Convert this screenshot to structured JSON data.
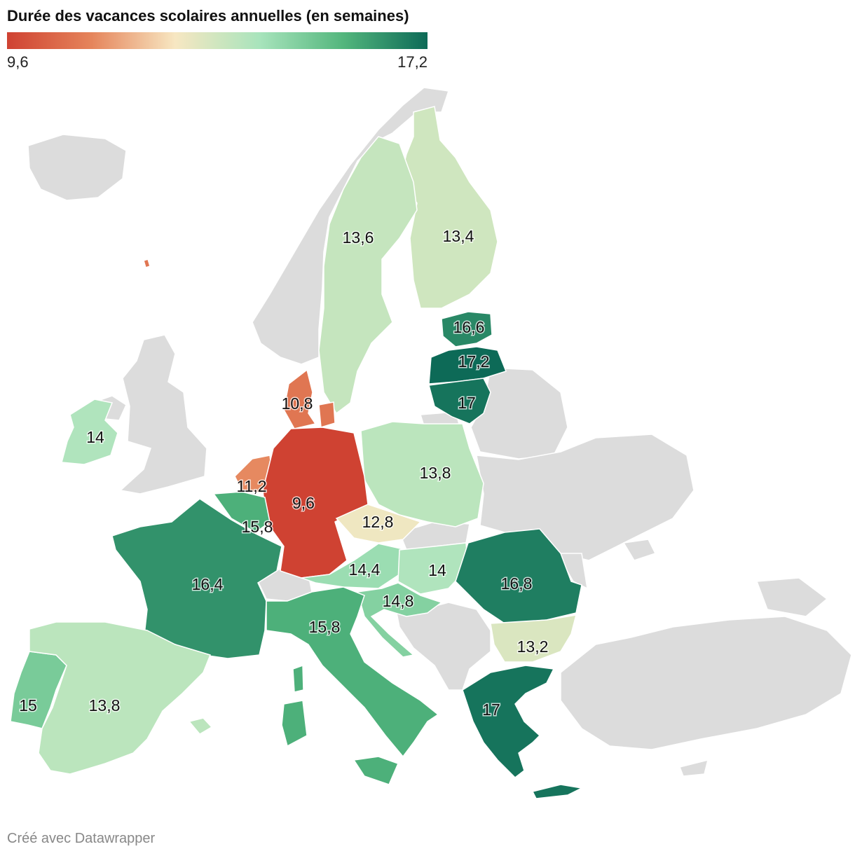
{
  "title": "Durée des vacances scolaires annuelles (en semaines)",
  "legend": {
    "min_label": "9,6",
    "max_label": "17,2",
    "min": 9.6,
    "max": 17.2,
    "stops": [
      "#cf4232",
      "#e5845b",
      "#f7e7c2",
      "#a8e4bc",
      "#53b67d",
      "#0d6a57"
    ]
  },
  "colors": {
    "no_data": "#dcdcdc",
    "border": "#ffffff"
  },
  "footer": "Créé avec Datawrapper",
  "chart_data": {
    "type": "choropleth",
    "region": "Europe",
    "regions": [
      {
        "id": "finland",
        "value": 13.4,
        "label": "13,4"
      },
      {
        "id": "sweden",
        "value": 13.6,
        "label": "13,6"
      },
      {
        "id": "estonia",
        "value": 16.6,
        "label": "16,6"
      },
      {
        "id": "latvia",
        "value": 17.2,
        "label": "17,2"
      },
      {
        "id": "lithuania",
        "value": 17,
        "label": "17"
      },
      {
        "id": "denmark",
        "value": 10.8,
        "label": "10,8"
      },
      {
        "id": "ireland",
        "value": 14,
        "label": "14"
      },
      {
        "id": "poland",
        "value": 13.8,
        "label": "13,8"
      },
      {
        "id": "netherlands",
        "value": 11.2,
        "label": "11,2"
      },
      {
        "id": "germany",
        "value": 9.6,
        "label": "9,6"
      },
      {
        "id": "belgium",
        "value": 15.8,
        "label": "15,8"
      },
      {
        "id": "czechia",
        "value": 12.8,
        "label": "12,8"
      },
      {
        "id": "france",
        "value": 16.4,
        "label": "16,4"
      },
      {
        "id": "austria",
        "value": 14.4,
        "label": "14,4"
      },
      {
        "id": "hungary",
        "value": 14,
        "label": "14"
      },
      {
        "id": "romania",
        "value": 16.8,
        "label": "16,8"
      },
      {
        "id": "slovenia_croatia",
        "value": 14.8,
        "label": "14,8"
      },
      {
        "id": "italy",
        "value": 15.8,
        "label": "15,8"
      },
      {
        "id": "bulgaria",
        "value": 13.2,
        "label": "13,2"
      },
      {
        "id": "portugal",
        "value": 15,
        "label": "15"
      },
      {
        "id": "spain",
        "value": 13.8,
        "label": "13,8"
      },
      {
        "id": "greece",
        "value": 17,
        "label": "17"
      },
      {
        "id": "faroe",
        "value": 10.8,
        "label": ""
      }
    ]
  }
}
